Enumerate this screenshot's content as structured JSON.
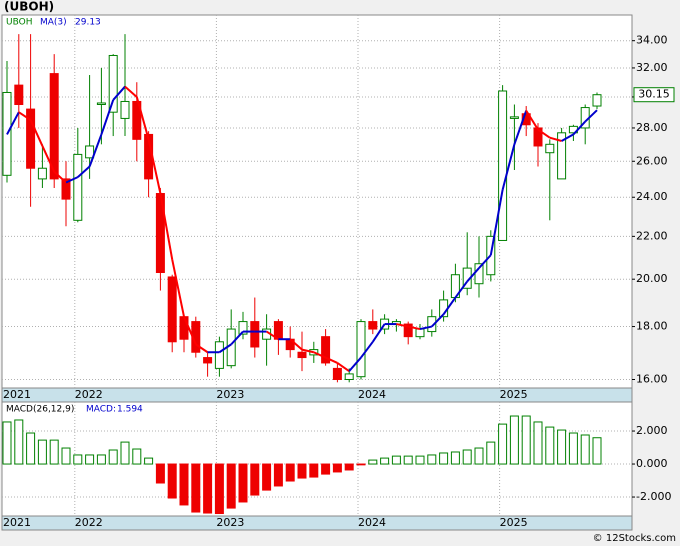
{
  "footer": "© 12Stocks.com",
  "chart_data": [
    {
      "type": "candlestick",
      "title": "(UBOH)",
      "categories": [
        null,
        null,
        null,
        null,
        null,
        null,
        null,
        null,
        null,
        null,
        null,
        null,
        null,
        null,
        null,
        null,
        null,
        null,
        null,
        null,
        null,
        null,
        null,
        null,
        null,
        null,
        null,
        null,
        null,
        null,
        null,
        null,
        null,
        null,
        null,
        null,
        null,
        null,
        null,
        null,
        null,
        null,
        null,
        null,
        null,
        null,
        null,
        null,
        null,
        null,
        null
      ],
      "xticks": [
        {
          "value": -0.3,
          "label": "2021"
        },
        {
          "value": 6,
          "label": "2022"
        },
        {
          "value": 18,
          "label": "2023"
        },
        {
          "value": 30,
          "label": "2024"
        },
        {
          "value": 42,
          "label": "2025"
        }
      ],
      "series": [
        {
          "name": "UBOH",
          "color": "#008000",
          "down_color": "#ee0000",
          "open": [
            25.2,
            30.8,
            29.2,
            25.0,
            31.6,
            25.0,
            22.8,
            26.2,
            29.5,
            29.0,
            28.6,
            29.7,
            27.6,
            24.2,
            20.1,
            18.4,
            18.2,
            16.8,
            16.4,
            16.5,
            17.7,
            18.2,
            17.5,
            18.2,
            17.5,
            17.0,
            16.9,
            17.6,
            16.4,
            16.0,
            16.1,
            18.2,
            17.9,
            18.1,
            18.1,
            17.6,
            17.8,
            18.4,
            19.2,
            19.6,
            19.8,
            20.2,
            21.8,
            28.6,
            28.9,
            28.0,
            26.5,
            25.0,
            27.7,
            28.0,
            29.4
          ],
          "high": [
            32.5,
            34.5,
            34.5,
            27.0,
            33.0,
            26.0,
            28.0,
            31.5,
            32.0,
            33.0,
            34.5,
            31.0,
            27.8,
            24.5,
            20.2,
            18.5,
            18.4,
            17.0,
            17.6,
            18.7,
            18.6,
            19.2,
            18.5,
            18.3,
            18.0,
            17.8,
            17.4,
            17.9,
            16.6,
            16.4,
            18.3,
            18.7,
            18.5,
            18.3,
            18.2,
            18.1,
            18.7,
            19.5,
            20.7,
            22.2,
            22.0,
            22.3,
            30.8,
            29.5,
            29.4,
            28.3,
            27.3,
            28.0,
            28.2,
            29.5,
            30.3
          ],
          "low": [
            24.8,
            28.0,
            23.5,
            24.5,
            24.5,
            22.5,
            22.7,
            25.0,
            27.0,
            27.5,
            27.5,
            26.0,
            24.0,
            19.5,
            17.0,
            17.0,
            16.8,
            16.1,
            16.1,
            16.4,
            17.5,
            16.8,
            16.5,
            16.9,
            16.8,
            16.3,
            16.6,
            16.5,
            15.9,
            15.9,
            16.0,
            17.7,
            17.7,
            17.8,
            17.3,
            17.5,
            17.6,
            18.2,
            19.0,
            19.3,
            19.2,
            19.9,
            21.8,
            25.5,
            27.5,
            25.7,
            22.8,
            25.0,
            27.2,
            27.0,
            29.2
          ],
          "close": [
            30.3,
            29.5,
            25.6,
            25.6,
            25.0,
            23.9,
            26.4,
            26.9,
            29.6,
            32.9,
            29.7,
            27.3,
            25.0,
            20.3,
            17.4,
            17.5,
            17.0,
            16.6,
            17.4,
            17.9,
            18.2,
            17.2,
            17.9,
            17.5,
            17.1,
            16.8,
            17.1,
            16.6,
            16.0,
            16.2,
            18.2,
            17.9,
            18.3,
            18.2,
            17.6,
            17.9,
            18.4,
            19.1,
            20.2,
            20.5,
            20.7,
            22.0,
            30.4,
            28.7,
            28.2,
            26.9,
            27.0,
            27.7,
            28.1,
            29.3,
            30.15
          ]
        },
        {
          "name": "MA(3)",
          "color": "#0000cc",
          "down_color": "#ff0000",
          "values": [
            27.6,
            29.0,
            28.5,
            26.9,
            25.4,
            24.8,
            25.1,
            25.7,
            27.6,
            29.8,
            30.7,
            30.0,
            27.3,
            24.2,
            20.9,
            18.4,
            17.3,
            17.0,
            17.0,
            17.3,
            17.8,
            17.8,
            17.8,
            17.5,
            17.5,
            17.1,
            17.0,
            16.8,
            16.6,
            16.3,
            16.8,
            17.4,
            18.1,
            18.1,
            18.0,
            17.9,
            18.0,
            18.5,
            19.2,
            19.9,
            20.5,
            21.1,
            24.4,
            27.0,
            29.1,
            27.9,
            27.4,
            27.2,
            27.6,
            28.4,
            29.13
          ]
        }
      ],
      "ylim": [
        15.7,
        36
      ],
      "log_scale": true,
      "grid": true,
      "yticks": [
        {
          "value": 16,
          "label": "16.00"
        },
        {
          "value": 18,
          "label": "18.00"
        },
        {
          "value": 20,
          "label": "20.00"
        },
        {
          "value": 22,
          "label": "22.00"
        },
        {
          "value": 24,
          "label": "24.00"
        },
        {
          "value": 26,
          "label": "26.00"
        },
        {
          "value": 28,
          "label": "28.00"
        },
        {
          "value": 30,
          "label": "30.00"
        },
        {
          "value": 32,
          "label": "32.00"
        },
        {
          "value": 34,
          "label": "34.00"
        }
      ]
    },
    {
      "type": "bar",
      "title": "MACD(26,12,9)",
      "legend_label": "MACD:",
      "color": "#008000",
      "down_color": "#ee0000",
      "values": [
        2.55,
        2.67,
        1.88,
        1.45,
        1.45,
        0.97,
        0.55,
        0.55,
        0.55,
        0.85,
        1.33,
        0.91,
        0.36,
        -1.15,
        -2.06,
        -2.48,
        -2.91,
        -2.97,
        -3.0,
        -2.67,
        -2.3,
        -1.88,
        -1.58,
        -1.33,
        -1.03,
        -0.85,
        -0.79,
        -0.61,
        -0.48,
        -0.36,
        -0.05,
        0.24,
        0.36,
        0.48,
        0.48,
        0.48,
        0.55,
        0.67,
        0.73,
        0.85,
        0.97,
        1.33,
        2.42,
        2.91,
        2.91,
        2.55,
        2.24,
        2.06,
        1.88,
        1.76,
        1.594
      ],
      "xticks": [
        {
          "value": -0.3,
          "label": "2021"
        },
        {
          "value": 6,
          "label": "2022"
        },
        {
          "value": 18,
          "label": "2023"
        },
        {
          "value": 30,
          "label": "2024"
        },
        {
          "value": 42,
          "label": "2025"
        }
      ],
      "ylim": [
        -3.15,
        3.76
      ],
      "grid": true,
      "yticks": [
        {
          "value": -2,
          "label": "-2.000"
        },
        {
          "value": 0,
          "label": "0.000"
        },
        {
          "value": 2,
          "label": "2.000"
        }
      ]
    }
  ]
}
